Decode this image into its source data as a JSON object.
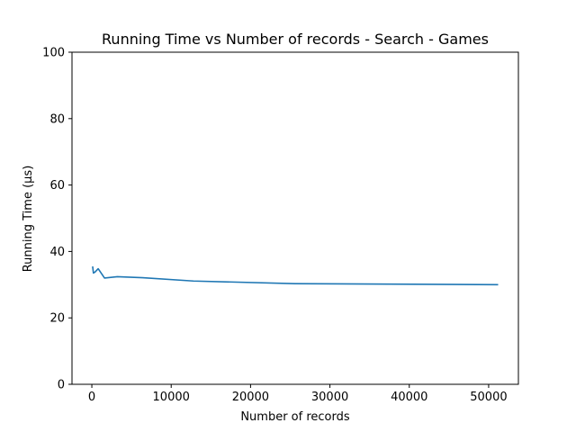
{
  "chart_data": {
    "type": "line",
    "title": "Running Time vs Number of records - Search - Games",
    "xlabel": "Number of records",
    "ylabel": "Running Time (µs)",
    "xlim": [
      -2500,
      53750
    ],
    "ylim": [
      0,
      100
    ],
    "xticks": [
      0,
      10000,
      20000,
      30000,
      40000,
      50000
    ],
    "yticks": [
      0,
      20,
      40,
      60,
      80,
      100
    ],
    "grid": false,
    "series": [
      {
        "color": "#1f77b4",
        "x": [
          100,
          200,
          400,
          800,
          1600,
          3200,
          6400,
          12800,
          25600,
          51200
        ],
        "y": [
          35.5,
          33.5,
          33.8,
          34.8,
          32.0,
          32.4,
          32.1,
          31.1,
          30.3,
          30.0
        ]
      }
    ]
  }
}
